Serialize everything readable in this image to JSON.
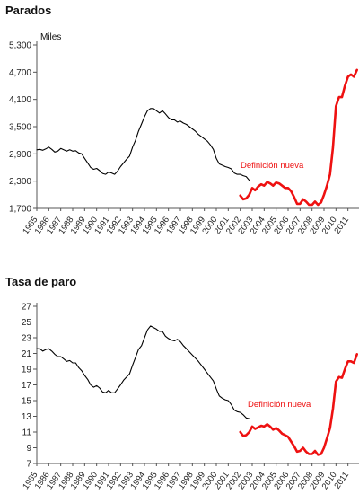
{
  "colors": {
    "old": "#000000",
    "new": "#ee1111",
    "axis": "#555555"
  },
  "chart_data": [
    {
      "type": "line",
      "title": "Parados",
      "ylabel": "Miles",
      "ylim": [
        1700,
        5300
      ],
      "yticks": [
        "5,300",
        "4,700",
        "4,100",
        "3,500",
        "2,900",
        "2,300",
        "1,700"
      ],
      "ytick_values": [
        5300,
        4700,
        4100,
        3500,
        2900,
        2300,
        1700
      ],
      "xlim": [
        1985,
        2012
      ],
      "xtick_labels": [
        "1985",
        "1986",
        "1987",
        "1988",
        "1989",
        "1990",
        "1991",
        "1992",
        "1993",
        "1994",
        "1995",
        "1996",
        "1997",
        "1998",
        "1999",
        "2000",
        "2001",
        "2002",
        "2003",
        "2004",
        "2005",
        "2006",
        "2007",
        "2008",
        "2009",
        "2010",
        "2011"
      ],
      "annotation": "Definición nueva",
      "series": [
        {
          "style": "old",
          "x": [
            1985.0,
            1985.25,
            1985.5,
            1985.75,
            1986.0,
            1986.25,
            1986.5,
            1986.75,
            1987.0,
            1987.25,
            1987.5,
            1987.75,
            1988.0,
            1988.25,
            1988.5,
            1988.75,
            1989.0,
            1989.25,
            1989.5,
            1989.75,
            1990.0,
            1990.25,
            1990.5,
            1990.75,
            1991.0,
            1991.25,
            1991.5,
            1991.75,
            1992.0,
            1992.25,
            1992.5,
            1992.75,
            1993.0,
            1993.25,
            1993.5,
            1993.75,
            1994.0,
            1994.25,
            1994.5,
            1994.75,
            1995.0,
            1995.25,
            1995.5,
            1995.75,
            1996.0,
            1996.25,
            1996.5,
            1996.75,
            1997.0,
            1997.25,
            1997.5,
            1997.75,
            1998.0,
            1998.25,
            1998.5,
            1998.75,
            1999.0,
            1999.25,
            1999.5,
            1999.75,
            2000.0,
            2000.25,
            2000.5,
            2000.75,
            2001.0,
            2001.25,
            2001.5,
            2001.75,
            2002.0,
            2002.25,
            2002.5,
            2002.75
          ],
          "y": [
            2990,
            3000,
            2980,
            3010,
            3050,
            3000,
            2940,
            2960,
            3020,
            2990,
            2960,
            2990,
            2960,
            2970,
            2920,
            2900,
            2800,
            2700,
            2600,
            2560,
            2580,
            2530,
            2470,
            2450,
            2500,
            2480,
            2450,
            2520,
            2620,
            2700,
            2780,
            2850,
            3050,
            3200,
            3400,
            3560,
            3720,
            3850,
            3900,
            3900,
            3850,
            3800,
            3850,
            3780,
            3700,
            3650,
            3650,
            3600,
            3620,
            3580,
            3550,
            3500,
            3450,
            3400,
            3330,
            3280,
            3230,
            3180,
            3100,
            3000,
            2800,
            2680,
            2650,
            2620,
            2600,
            2570,
            2480,
            2450,
            2450,
            2420,
            2400,
            2320
          ]
        },
        {
          "style": "new",
          "x": [
            2002.0,
            2002.25,
            2002.5,
            2002.75,
            2003.0,
            2003.25,
            2003.5,
            2003.75,
            2004.0,
            2004.25,
            2004.5,
            2004.75,
            2005.0,
            2005.25,
            2005.5,
            2005.75,
            2006.0,
            2006.25,
            2006.5,
            2006.75,
            2007.0,
            2007.25,
            2007.5,
            2007.75,
            2008.0,
            2008.25,
            2008.5,
            2008.75,
            2009.0,
            2009.25,
            2009.5,
            2009.75,
            2010.0,
            2010.25,
            2010.5,
            2010.75,
            2011.0,
            2011.25,
            2011.5,
            2011.75
          ],
          "y": [
            1980,
            1900,
            1920,
            2000,
            2150,
            2100,
            2180,
            2230,
            2200,
            2280,
            2250,
            2200,
            2270,
            2250,
            2200,
            2150,
            2150,
            2080,
            1950,
            1800,
            1800,
            1900,
            1850,
            1780,
            1780,
            1850,
            1780,
            1830,
            2000,
            2200,
            2450,
            3050,
            3950,
            4150,
            4150,
            4400,
            4600,
            4650,
            4600,
            4750
          ]
        }
      ]
    },
    {
      "type": "line",
      "title": "Tasa de paro",
      "ylabel": "",
      "ylim": [
        7,
        27
      ],
      "yticks": [
        "27",
        "25",
        "23",
        "21",
        "19",
        "17",
        "15",
        "13",
        "11",
        "9",
        "7"
      ],
      "ytick_values": [
        27,
        25,
        23,
        21,
        19,
        17,
        15,
        13,
        11,
        9,
        7
      ],
      "xlim": [
        1985,
        2012
      ],
      "xtick_labels": [
        "1985",
        "1986",
        "1987",
        "1988",
        "1989",
        "1990",
        "1991",
        "1992",
        "1993",
        "1994",
        "1995",
        "1996",
        "1997",
        "1998",
        "1999",
        "2000",
        "2001",
        "2002",
        "2003",
        "2004",
        "2005",
        "2006",
        "2007",
        "2008",
        "2009",
        "2010",
        "2011"
      ],
      "annotation": "Definición nueva",
      "series": [
        {
          "style": "old",
          "x": [
            1985.0,
            1985.25,
            1985.5,
            1985.75,
            1986.0,
            1986.25,
            1986.5,
            1986.75,
            1987.0,
            1987.25,
            1987.5,
            1987.75,
            1988.0,
            1988.25,
            1988.5,
            1988.75,
            1989.0,
            1989.25,
            1989.5,
            1989.75,
            1990.0,
            1990.25,
            1990.5,
            1990.75,
            1991.0,
            1991.25,
            1991.5,
            1991.75,
            1992.0,
            1992.25,
            1992.5,
            1992.75,
            1993.0,
            1993.25,
            1993.5,
            1993.75,
            1994.0,
            1994.25,
            1994.5,
            1994.75,
            1995.0,
            1995.25,
            1995.5,
            1995.75,
            1996.0,
            1996.25,
            1996.5,
            1996.75,
            1997.0,
            1997.25,
            1997.5,
            1997.75,
            1998.0,
            1998.25,
            1998.5,
            1998.75,
            1999.0,
            1999.25,
            1999.5,
            1999.75,
            2000.0,
            2000.25,
            2000.5,
            2000.75,
            2001.0,
            2001.25,
            2001.5,
            2001.75,
            2002.0,
            2002.25,
            2002.5,
            2002.75
          ],
          "y": [
            21.6,
            21.6,
            21.3,
            21.5,
            21.6,
            21.3,
            20.9,
            20.6,
            20.6,
            20.3,
            20.0,
            20.1,
            19.8,
            19.8,
            19.2,
            18.8,
            18.2,
            17.7,
            17.0,
            16.7,
            16.9,
            16.6,
            16.1,
            16.0,
            16.3,
            16.0,
            16.0,
            16.5,
            17.0,
            17.6,
            18.0,
            18.4,
            19.5,
            20.5,
            21.5,
            22.0,
            23.0,
            24.0,
            24.5,
            24.3,
            24.1,
            23.8,
            23.8,
            23.2,
            22.9,
            22.7,
            22.6,
            22.8,
            22.5,
            22.0,
            21.6,
            21.2,
            20.8,
            20.4,
            20.0,
            19.5,
            19.0,
            18.5,
            18.0,
            17.5,
            16.5,
            15.6,
            15.3,
            15.1,
            15.0,
            14.5,
            13.8,
            13.6,
            13.5,
            13.2,
            12.8,
            12.7
          ]
        },
        {
          "style": "new",
          "x": [
            2002.0,
            2002.25,
            2002.5,
            2002.75,
            2003.0,
            2003.25,
            2003.5,
            2003.75,
            2004.0,
            2004.25,
            2004.5,
            2004.75,
            2005.0,
            2005.25,
            2005.5,
            2005.75,
            2006.0,
            2006.25,
            2006.5,
            2006.75,
            2007.0,
            2007.25,
            2007.5,
            2007.75,
            2008.0,
            2008.25,
            2008.5,
            2008.75,
            2009.0,
            2009.25,
            2009.5,
            2009.75,
            2010.0,
            2010.25,
            2010.5,
            2010.75,
            2011.0,
            2011.25,
            2011.5,
            2011.75
          ],
          "y": [
            11.0,
            10.5,
            10.6,
            11.0,
            11.7,
            11.4,
            11.6,
            11.8,
            11.7,
            12.0,
            11.7,
            11.3,
            11.5,
            11.2,
            10.8,
            10.6,
            10.4,
            9.8,
            9.2,
            8.5,
            8.6,
            9.0,
            8.5,
            8.2,
            8.2,
            8.6,
            8.1,
            8.2,
            9.0,
            10.2,
            11.5,
            14.0,
            17.4,
            18.0,
            17.9,
            19.0,
            20.0,
            20.0,
            19.8,
            20.9
          ]
        }
      ]
    }
  ]
}
